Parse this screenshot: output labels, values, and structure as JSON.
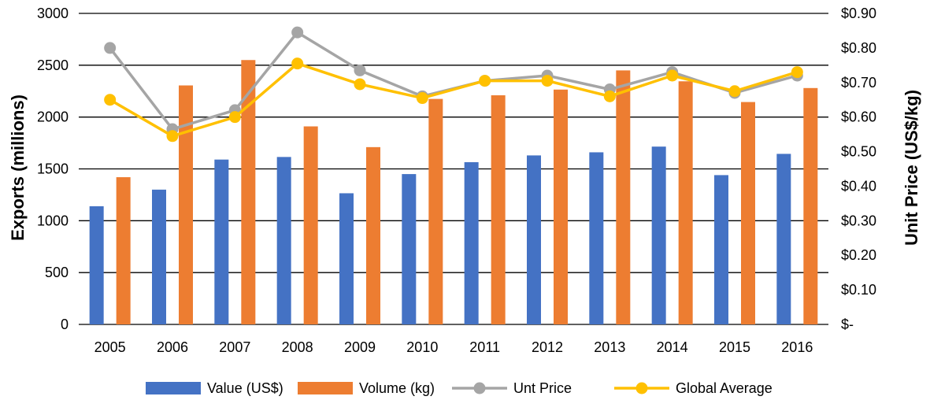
{
  "chart_data": {
    "type": "bar",
    "categories": [
      "2005",
      "2006",
      "2007",
      "2008",
      "2009",
      "2010",
      "2011",
      "2012",
      "2013",
      "2014",
      "2015",
      "2016"
    ],
    "series": [
      {
        "name": "Value (US$)",
        "type": "bar",
        "axis": "left",
        "color": "#4472C4",
        "values": [
          1140,
          1300,
          1590,
          1615,
          1265,
          1450,
          1565,
          1630,
          1660,
          1715,
          1440,
          1645
        ]
      },
      {
        "name": "Volume (kg)",
        "type": "bar",
        "axis": "left",
        "color": "#ED7D31",
        "values": [
          1420,
          2305,
          2550,
          1910,
          1710,
          2175,
          2210,
          2265,
          2450,
          2345,
          2145,
          2280
        ]
      },
      {
        "name": "Unt Price",
        "type": "line",
        "axis": "right",
        "color": "#A5A5A5",
        "values": [
          0.8,
          0.565,
          0.62,
          0.845,
          0.735,
          0.66,
          0.705,
          0.72,
          0.68,
          0.73,
          0.67,
          0.72
        ]
      },
      {
        "name": "Global Average",
        "type": "line",
        "axis": "right",
        "color": "#FFC000",
        "values": [
          0.65,
          0.545,
          0.6,
          0.755,
          0.695,
          0.655,
          0.705,
          0.705,
          0.66,
          0.72,
          0.675,
          0.73
        ]
      }
    ],
    "ylabel": "Exports (millions)",
    "y2label": "Unit Price (US$/kg)",
    "ylim": [
      0,
      3000
    ],
    "y2lim": [
      0,
      0.9
    ],
    "yticks": [
      "0",
      "500",
      "1000",
      "1500",
      "2000",
      "2500",
      "3000"
    ],
    "y2ticks": [
      "$-",
      "$0.10",
      "$0.20",
      "$0.30",
      "$0.40",
      "$0.50",
      "$0.60",
      "$0.70",
      "$0.80",
      "$0.90"
    ],
    "grid": true,
    "legend": "bottom"
  }
}
